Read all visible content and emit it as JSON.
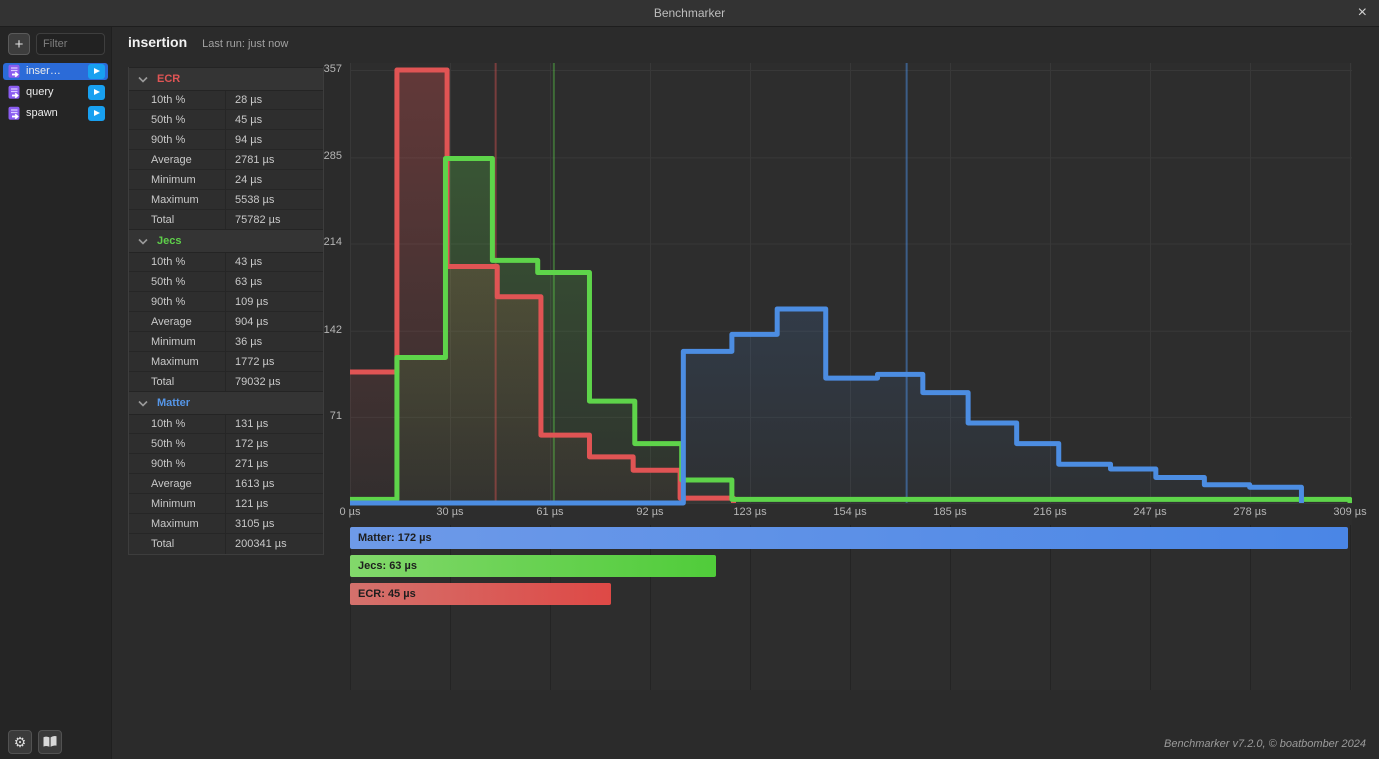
{
  "window": {
    "title": "Benchmarker",
    "close_glyph": "×"
  },
  "sidebar": {
    "add_label": "+",
    "filter_placeholder": "Filter",
    "items": [
      {
        "label": "inser…",
        "selected": true
      },
      {
        "label": "query",
        "selected": false
      },
      {
        "label": "spawn",
        "selected": false
      }
    ]
  },
  "header": {
    "title": "insertion",
    "last_run": "Last run: just now"
  },
  "stats": {
    "sections": [
      {
        "name": "ECR",
        "color": "#e05555",
        "rows": [
          [
            "10th %",
            "28 µs"
          ],
          [
            "50th %",
            "45 µs"
          ],
          [
            "90th %",
            "94 µs"
          ],
          [
            "Average",
            "2781 µs"
          ],
          [
            "Minimum",
            "24 µs"
          ],
          [
            "Maximum",
            "5538 µs"
          ],
          [
            "Total",
            "75782 µs"
          ]
        ]
      },
      {
        "name": "Jecs",
        "color": "#5ecf4a",
        "rows": [
          [
            "10th %",
            "43 µs"
          ],
          [
            "50th %",
            "63 µs"
          ],
          [
            "90th %",
            "109 µs"
          ],
          [
            "Average",
            "904 µs"
          ],
          [
            "Minimum",
            "36 µs"
          ],
          [
            "Maximum",
            "1772 µs"
          ],
          [
            "Total",
            "79032 µs"
          ]
        ]
      },
      {
        "name": "Matter",
        "color": "#5596e8",
        "rows": [
          [
            "10th %",
            "131 µs"
          ],
          [
            "50th %",
            "172 µs"
          ],
          [
            "90th %",
            "271 µs"
          ],
          [
            "Average",
            "1613 µs"
          ],
          [
            "Minimum",
            "121 µs"
          ],
          [
            "Maximum",
            "3105 µs"
          ],
          [
            "Total",
            "200341 µs"
          ]
        ]
      }
    ]
  },
  "chart_data": {
    "type": "histogram-step",
    "x_unit": "µs",
    "x_max_us": 309,
    "y_max": 357,
    "x_ticks": [
      "0 µs",
      "30 µs",
      "61 µs",
      "92 µs",
      "123 µs",
      "154 µs",
      "185 µs",
      "216 µs",
      "247 µs",
      "278 µs",
      "309 µs"
    ],
    "y_ticks": [
      357,
      285,
      214,
      142,
      71
    ],
    "series": [
      {
        "name": "ECR",
        "color": "#e05454",
        "median_color": "rgba(224,84,84,0.42)",
        "median_us": 45,
        "steps": [
          [
            0,
            108
          ],
          [
            14.5,
            357
          ],
          [
            30,
            195
          ],
          [
            45.5,
            170
          ],
          [
            59,
            56
          ],
          [
            74,
            38
          ],
          [
            87.5,
            27
          ],
          [
            102,
            4
          ]
        ],
        "end_us": 118.5
      },
      {
        "name": "Jecs",
        "color": "#5ed44a",
        "median_color": "rgba(94,212,74,0.38)",
        "median_us": 63,
        "steps": [
          [
            0,
            3
          ],
          [
            14.5,
            120
          ],
          [
            29.5,
            284
          ],
          [
            44,
            200
          ],
          [
            58,
            190
          ],
          [
            74,
            84
          ],
          [
            88,
            49
          ],
          [
            102.5,
            19
          ],
          [
            118,
            3
          ]
        ],
        "end_us": 309
      },
      {
        "name": "Matter",
        "color": "#4c8de2",
        "median_color": "rgba(76,141,226,0.5)",
        "median_us": 172,
        "steps": [
          [
            0,
            0
          ],
          [
            103,
            125
          ],
          [
            118,
            139
          ],
          [
            132,
            160
          ],
          [
            147,
            103
          ],
          [
            163,
            106
          ],
          [
            177,
            91
          ],
          [
            191,
            66
          ],
          [
            206,
            49
          ],
          [
            219,
            32
          ],
          [
            235,
            28
          ],
          [
            249,
            21
          ],
          [
            264,
            15
          ],
          [
            278,
            13
          ]
        ],
        "end_us": 294
      }
    ]
  },
  "legend_bars": {
    "max_us": 172,
    "bars": [
      {
        "name": "Matter",
        "label": "Matter: 172 µs",
        "value_us": 172,
        "color_left": "#6e9ae8",
        "color_right": "#4a86e6"
      },
      {
        "name": "Jecs",
        "label": "Jecs: 63 µs",
        "value_us": 63,
        "color_left": "#82d86b",
        "color_right": "#50cc3a"
      },
      {
        "name": "ECR",
        "label": "ECR: 45 µs",
        "value_us": 45,
        "color_left": "#d4716c",
        "color_right": "#de4946"
      }
    ]
  },
  "footer": {
    "credit": "Benchmarker v7.2.0, © boatbomber 2024"
  }
}
